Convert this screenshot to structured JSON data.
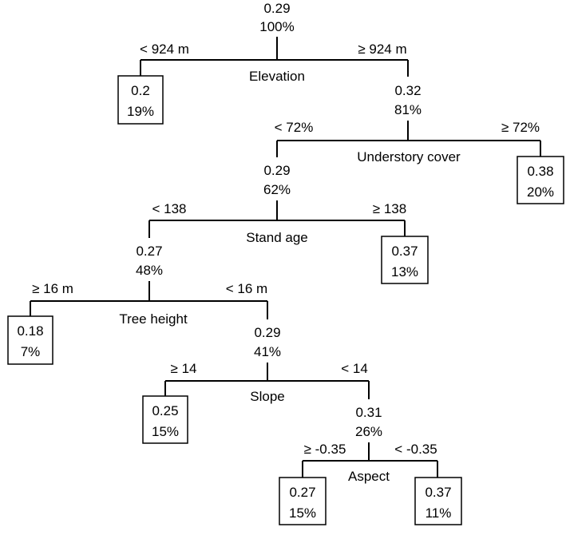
{
  "nodes": {
    "root": {
      "value": "0.29",
      "percent": "100%",
      "split": "Elevation"
    },
    "elev_lo": {
      "value": "0.2",
      "percent": "19%"
    },
    "elev_hi": {
      "value": "0.32",
      "percent": "81%",
      "split": "Understory cover"
    },
    "under_hi": {
      "value": "0.38",
      "percent": "20%"
    },
    "under_lo": {
      "value": "0.29",
      "percent": "62%",
      "split": "Stand age"
    },
    "age_hi": {
      "value": "0.37",
      "percent": "13%"
    },
    "age_lo": {
      "value": "0.27",
      "percent": "48%",
      "split": "Tree height"
    },
    "height_hi": {
      "value": "0.18",
      "percent": "7%"
    },
    "height_lo": {
      "value": "0.29",
      "percent": "41%",
      "split": "Slope"
    },
    "slope_hi": {
      "value": "0.25",
      "percent": "15%"
    },
    "slope_lo": {
      "value": "0.31",
      "percent": "26%",
      "split": "Aspect"
    },
    "aspect_hi": {
      "value": "0.27",
      "percent": "15%"
    },
    "aspect_lo": {
      "value": "0.37",
      "percent": "11%"
    }
  },
  "branches": {
    "elevation_left": "< 924 m",
    "elevation_right": "≥ 924 m",
    "understory_left": "< 72%",
    "understory_right": "≥ 72%",
    "standage_left": "< 138",
    "standage_right": "≥ 138",
    "treeheight_left": "≥ 16 m",
    "treeheight_right": "< 16 m",
    "slope_left": "≥ 14",
    "slope_right": "< 14",
    "aspect_left": "≥ -0.35",
    "aspect_right": "< -0.35"
  }
}
